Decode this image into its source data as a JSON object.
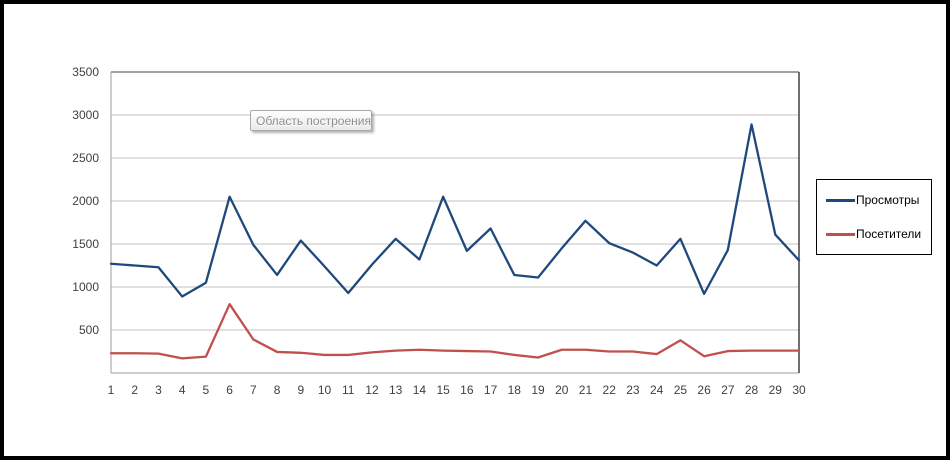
{
  "tooltip": {
    "text": "Область построения"
  },
  "legend": {
    "items": [
      {
        "label": "Просмотры"
      },
      {
        "label": "Посетители"
      }
    ]
  },
  "chart_data": {
    "type": "line",
    "title": "",
    "xlabel": "",
    "ylabel": "",
    "x": [
      1,
      2,
      3,
      4,
      5,
      6,
      7,
      8,
      9,
      10,
      11,
      12,
      13,
      14,
      15,
      16,
      17,
      18,
      19,
      20,
      21,
      22,
      23,
      24,
      25,
      26,
      27,
      28,
      29,
      30
    ],
    "series": [
      {
        "name": "Просмотры",
        "color": "#1F497D",
        "values": [
          1270,
          1250,
          1230,
          890,
          1050,
          2050,
          1490,
          1140,
          1540,
          1240,
          930,
          1260,
          1560,
          1320,
          2050,
          1420,
          1680,
          1140,
          1110,
          1450,
          1770,
          1510,
          1400,
          1250,
          1560,
          920,
          1430,
          2890,
          1610,
          1310
        ]
      },
      {
        "name": "Посетители",
        "color": "#C0504D",
        "values": [
          230,
          230,
          225,
          170,
          190,
          800,
          390,
          245,
          235,
          210,
          210,
          240,
          260,
          270,
          260,
          255,
          250,
          210,
          180,
          270,
          270,
          250,
          250,
          220,
          380,
          195,
          255,
          260,
          260,
          260
        ]
      }
    ],
    "ylim": [
      0,
      3500
    ],
    "ytick_step": 500,
    "yticks_labeled": [
      3500,
      3000,
      2500,
      2000,
      1500,
      1000,
      500
    ],
    "grid": true,
    "legend_position": "right",
    "colors": {
      "gridline": "#C3C3C3",
      "axis_line": "#9E9E9E",
      "plot_border_dark": "#404040",
      "tick_label": "#404040"
    }
  }
}
